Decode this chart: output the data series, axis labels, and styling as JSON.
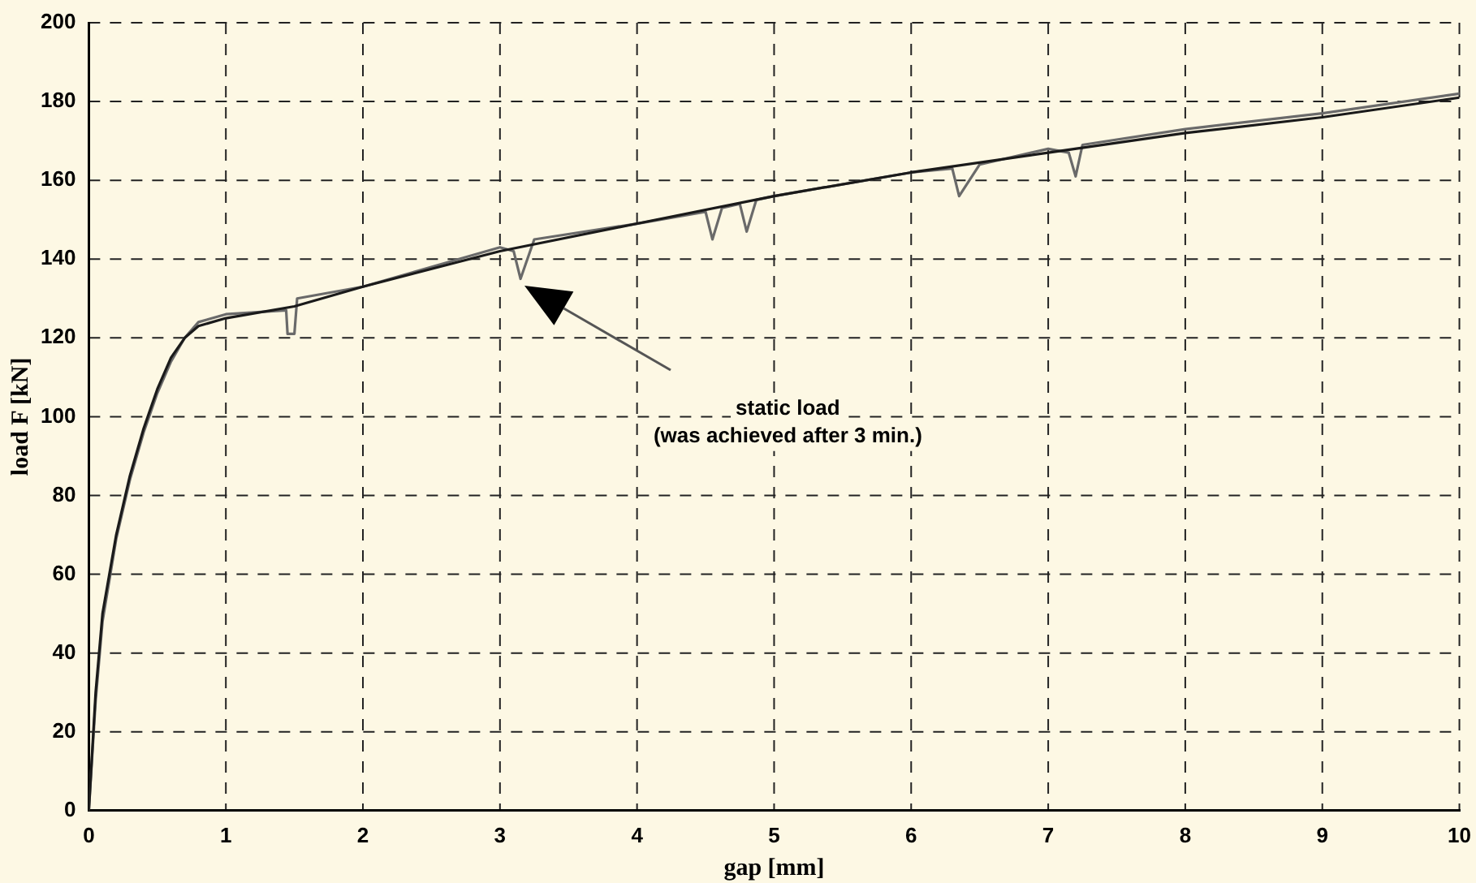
{
  "chart_data": {
    "type": "line",
    "xlabel": "gap [mm]",
    "ylabel": "load F [kN]",
    "xlim": [
      0,
      10
    ],
    "xticks": [
      0,
      1,
      2,
      3,
      4,
      5,
      6,
      7,
      8,
      9,
      10
    ],
    "ylim": [
      0,
      200
    ],
    "yticks": [
      0,
      20,
      40,
      60,
      80,
      100,
      120,
      140,
      160,
      180,
      200
    ],
    "grid": true,
    "marker": "none",
    "line_style": "solid",
    "series": [
      {
        "color": "#1a1a1a",
        "x": [
          0,
          0.05,
          0.1,
          0.2,
          0.3,
          0.4,
          0.5,
          0.6,
          0.7,
          0.8,
          1,
          1.5,
          2,
          3,
          4,
          5,
          6,
          7,
          8,
          9,
          10
        ],
        "values": [
          0,
          30,
          50,
          70,
          85,
          97,
          107,
          115,
          120,
          123,
          125,
          128,
          133,
          142,
          149,
          156,
          162,
          167,
          172,
          176,
          181
        ]
      },
      {
        "color": "#6a6a6a",
        "x": [
          0,
          0.05,
          0.1,
          0.2,
          0.3,
          0.4,
          0.5,
          0.6,
          0.7,
          0.8,
          1,
          1.44,
          1.45,
          1.5,
          1.52,
          2,
          3,
          3.1,
          3.15,
          3.25,
          4,
          4.5,
          4.55,
          4.62,
          4.75,
          4.8,
          4.87,
          5,
          6,
          6.3,
          6.35,
          6.5,
          7,
          7.15,
          7.2,
          7.25,
          8,
          9,
          10
        ],
        "values": [
          0,
          28,
          48,
          69,
          84,
          96,
          106,
          114,
          120,
          124,
          126,
          127,
          121,
          121,
          130,
          133,
          143,
          142,
          135,
          145,
          149,
          152,
          145,
          153,
          154,
          147,
          155,
          156,
          162,
          163,
          156,
          164,
          168,
          167,
          161,
          169,
          173,
          177,
          182
        ]
      }
    ],
    "annotations": [
      "static load\n(was achieved after 3 min.)"
    ]
  }
}
